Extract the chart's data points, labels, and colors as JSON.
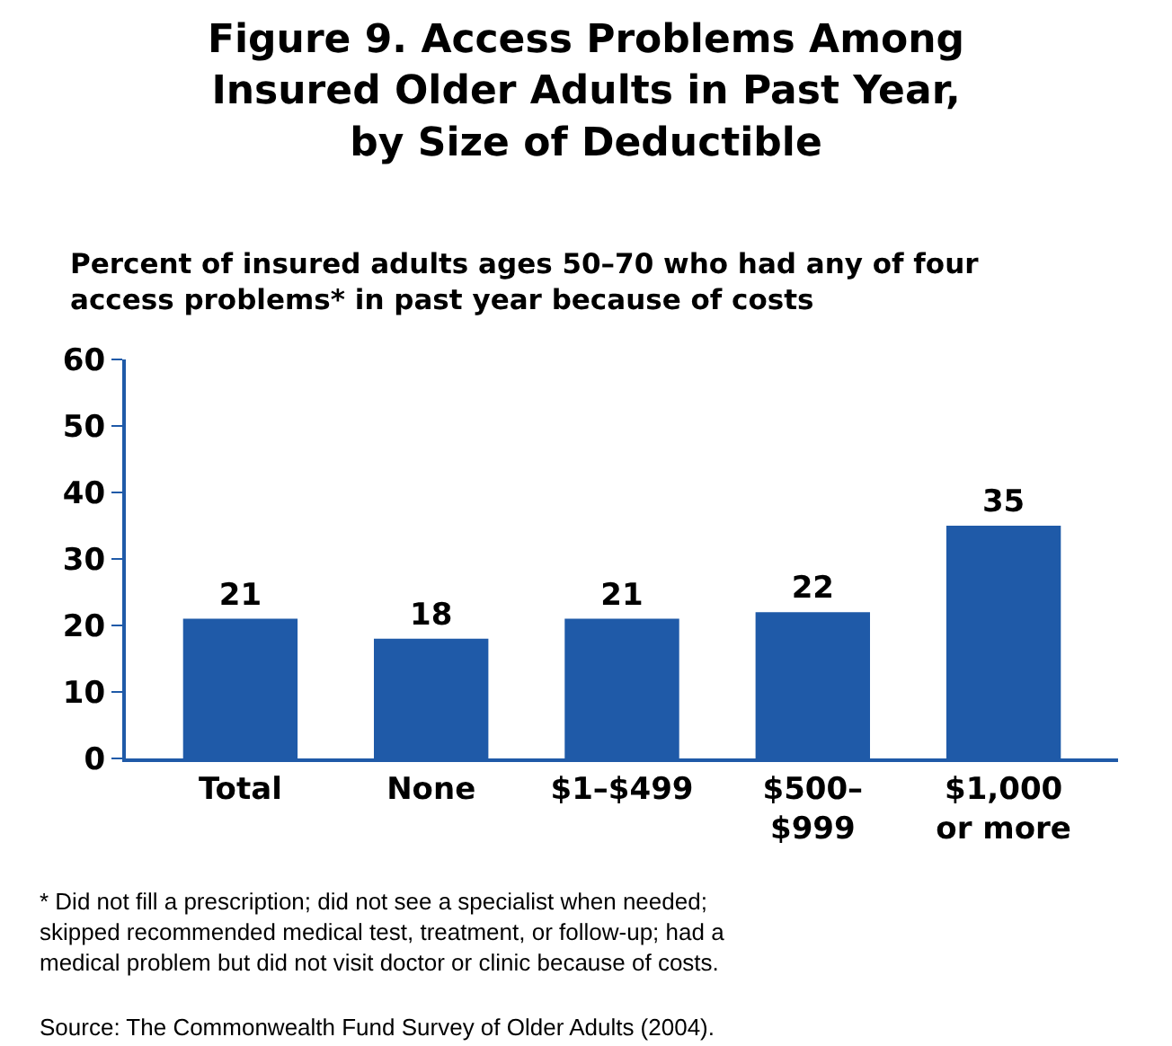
{
  "chart_data": {
    "type": "bar",
    "title": "Figure 9. Access Problems Among Insured Older Adults in Past Year, by Size of Deductible",
    "subtitle": "Percent of insured adults ages 50–70 who had any of four access problems* in past year because of costs",
    "categories": [
      "Total",
      "None",
      "$1–$499",
      "$500–$999",
      "$1,000 or more"
    ],
    "values": [
      21,
      18,
      21,
      22,
      35
    ],
    "color": "#1f5aa8",
    "ylim": [
      0,
      60
    ],
    "yticks": [
      0,
      10,
      20,
      30,
      40,
      50,
      60
    ],
    "grid": false,
    "legend": false,
    "data_labels": true,
    "annotations": [
      "* Did not fill a prescription; did not see a specialist when needed; skipped recommended medical test, treatment, or follow-up; had a medical problem but did not visit doctor or clinic because of costs.",
      "Source: The Commonwealth Fund Survey of Older Adults (2004)."
    ]
  }
}
